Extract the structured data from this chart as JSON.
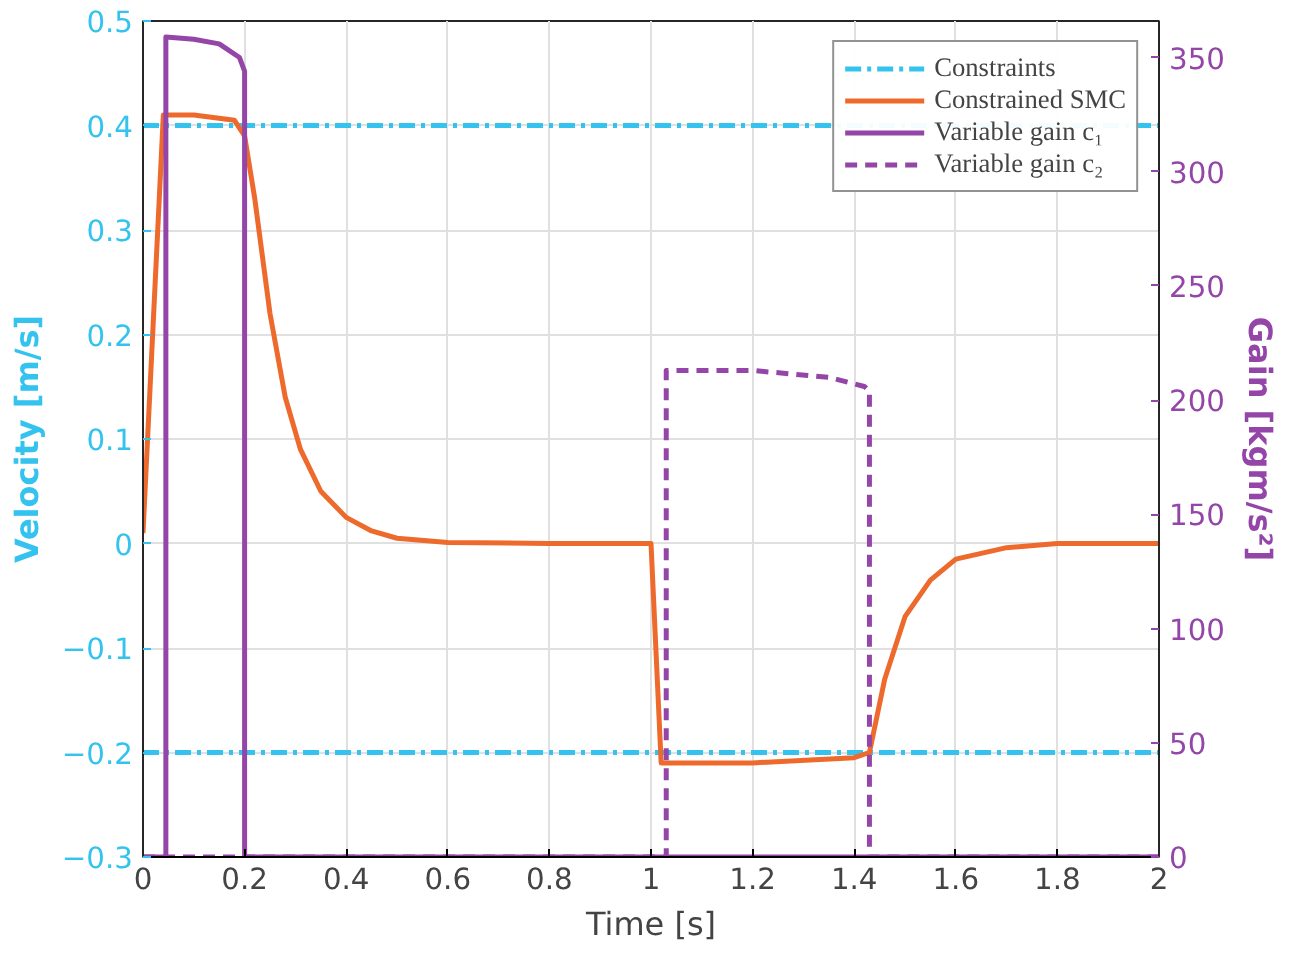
{
  "chart_data": {
    "type": "line",
    "xlabel": "Time [s]",
    "ylabel": "Velocity [m/s]",
    "y2label": "Gain [kgm/s²]",
    "xlim": [
      0,
      2
    ],
    "xticks": [
      0,
      0.2,
      0.4,
      0.6,
      0.8,
      1,
      1.2,
      1.4,
      1.6,
      1.8,
      2
    ],
    "ylim": [
      -0.3,
      0.5
    ],
    "yticks": [
      -0.3,
      -0.2,
      -0.1,
      0,
      0.1,
      0.2,
      0.3,
      0.4,
      0.5
    ],
    "y2lim": [
      0,
      366
    ],
    "y2ticks": [
      0,
      50,
      100,
      150,
      200,
      250,
      300,
      350
    ],
    "grid": true,
    "legend": "top right",
    "series": [
      {
        "name": "Constraints",
        "color": "#33c3ee",
        "line_style": "dashdot",
        "x": [
          0,
          2
        ],
        "values": [
          0.4,
          0.4
        ]
      },
      {
        "color": "#33c3ee",
        "line_style": "dashdot",
        "x": [
          0,
          2
        ],
        "values": [
          -0.2,
          -0.2
        ]
      },
      {
        "name": "Constrained SMC",
        "color": "#ed6a2c",
        "line_style": "solid",
        "x": [
          0,
          0.04,
          0.1,
          0.18,
          0.2,
          0.22,
          0.25,
          0.28,
          0.31,
          0.35,
          0.4,
          0.45,
          0.5,
          0.6,
          0.8,
          1.0,
          1.02,
          1.2,
          1.4,
          1.43,
          1.46,
          1.5,
          1.55,
          1.6,
          1.7,
          1.8,
          2
        ],
        "values": [
          0.01,
          0.41,
          0.41,
          0.405,
          0.39,
          0.33,
          0.22,
          0.14,
          0.09,
          0.05,
          0.025,
          0.012,
          0.005,
          0.001,
          0,
          0,
          -0.21,
          -0.21,
          -0.205,
          -0.2,
          -0.13,
          -0.07,
          -0.035,
          -0.015,
          -0.004,
          0,
          0
        ]
      },
      {
        "name": "Variable gain c₁",
        "color": "#9446a8",
        "line_style": "solid",
        "axis": "y2",
        "x": [
          0,
          0.045,
          0.045,
          0.1,
          0.15,
          0.19,
          0.2,
          0.2,
          2
        ],
        "values": [
          0,
          0,
          359,
          358,
          356,
          350,
          344,
          0,
          0
        ]
      },
      {
        "name": "Variable gain c₂",
        "color": "#9446a8",
        "line_style": "dashed",
        "axis": "y2",
        "x": [
          0,
          1.03,
          1.03,
          1.2,
          1.35,
          1.42,
          1.43,
          1.43,
          2
        ],
        "values": [
          0,
          0,
          213,
          213,
          210,
          206,
          204,
          0,
          0
        ]
      }
    ]
  }
}
